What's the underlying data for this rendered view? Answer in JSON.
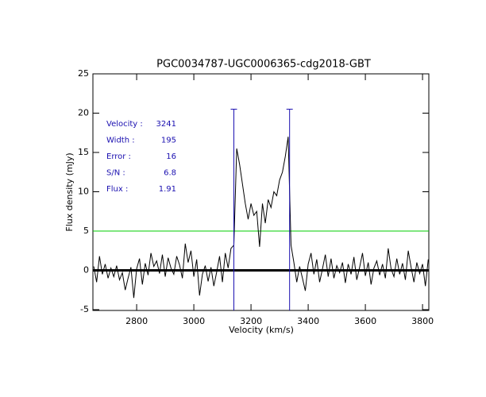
{
  "chart_data": {
    "type": "line",
    "title": "PGC0034787-UGC0006365-cdg2018-GBT",
    "x_label": "Velocity (km/s)",
    "y_label": "Flux density (mJy)",
    "xlim": [
      2647,
      3822
    ],
    "ylim": [
      -5.1,
      25
    ],
    "xticks": [
      2800,
      3000,
      3200,
      3400,
      3600,
      3800
    ],
    "yticks": [
      -5,
      0,
      5,
      10,
      15,
      20,
      25
    ],
    "series": [
      {
        "color": "#000000",
        "x": [
          2650,
          2660,
          2670,
          2680,
          2690,
          2700,
          2710,
          2720,
          2730,
          2740,
          2750,
          2760,
          2770,
          2780,
          2790,
          2800,
          2810,
          2820,
          2830,
          2840,
          2850,
          2860,
          2870,
          2880,
          2890,
          2900,
          2910,
          2920,
          2930,
          2940,
          2950,
          2960,
          2970,
          2980,
          2990,
          3000,
          3010,
          3020,
          3030,
          3040,
          3050,
          3060,
          3070,
          3080,
          3090,
          3100,
          3110,
          3120,
          3130,
          3140,
          3150,
          3160,
          3170,
          3180,
          3190,
          3200,
          3210,
          3220,
          3230,
          3240,
          3250,
          3260,
          3270,
          3280,
          3290,
          3300,
          3310,
          3320,
          3330,
          3340,
          3350,
          3360,
          3370,
          3380,
          3390,
          3400,
          3410,
          3420,
          3430,
          3440,
          3450,
          3460,
          3470,
          3480,
          3490,
          3500,
          3510,
          3520,
          3530,
          3540,
          3550,
          3560,
          3570,
          3580,
          3590,
          3600,
          3610,
          3620,
          3630,
          3640,
          3650,
          3660,
          3670,
          3680,
          3690,
          3700,
          3710,
          3720,
          3730,
          3740,
          3750,
          3760,
          3770,
          3780,
          3790,
          3800,
          3810,
          3820
        ],
        "values": [
          0.5,
          -1.5,
          1.8,
          -0.5,
          0.8,
          -1.0,
          0.3,
          -0.8,
          0.6,
          -1.2,
          -0.3,
          -2.5,
          -1.0,
          0.4,
          -3.5,
          0.2,
          1.5,
          -1.8,
          0.9,
          -0.6,
          2.2,
          0.5,
          1.2,
          -0.4,
          2.0,
          -0.8,
          1.6,
          0.3,
          -0.5,
          1.8,
          0.7,
          -1.0,
          3.4,
          1.0,
          2.5,
          -0.8,
          1.4,
          -3.2,
          -0.5,
          0.6,
          -1.4,
          0.4,
          -2.0,
          -0.2,
          1.8,
          -1.5,
          2.2,
          0.3,
          2.8,
          3.2,
          15.5,
          13.5,
          11.0,
          8.5,
          6.5,
          8.5,
          7.0,
          7.5,
          3.0,
          8.5,
          6.0,
          9.0,
          8.0,
          10.0,
          9.5,
          11.5,
          12.5,
          14.5,
          17.0,
          3.2,
          1.0,
          -1.5,
          0.5,
          -1.0,
          -2.6,
          0.8,
          2.2,
          -0.5,
          1.4,
          -1.5,
          0.2,
          2.0,
          -0.8,
          1.5,
          -1.0,
          0.6,
          -0.3,
          1.0,
          -1.6,
          0.8,
          -0.5,
          1.7,
          -1.2,
          0.4,
          2.2,
          -0.7,
          1.0,
          -1.8,
          0.3,
          1.2,
          -0.6,
          0.8,
          -1.0,
          2.8,
          0.2,
          -0.8,
          1.5,
          -0.5,
          0.9,
          -1.2,
          2.5,
          0.4,
          -1.5,
          1.0,
          -0.4,
          0.8,
          -2.0,
          1.4
        ]
      }
    ],
    "hlines": [
      {
        "value": 5,
        "color": "#00cc00",
        "width": 1
      },
      {
        "value": 0,
        "color": "#000000",
        "width": 3
      }
    ],
    "vlines": {
      "x": [
        3140,
        3335
      ],
      "top": 20.5,
      "color": "#1a0fb0"
    },
    "annotations": {
      "labels": [
        "Velocity :",
        "Width :",
        "Error :",
        "S/N :",
        "Flux :"
      ],
      "values": [
        3241,
        195,
        16,
        6.8,
        1.91
      ]
    }
  }
}
